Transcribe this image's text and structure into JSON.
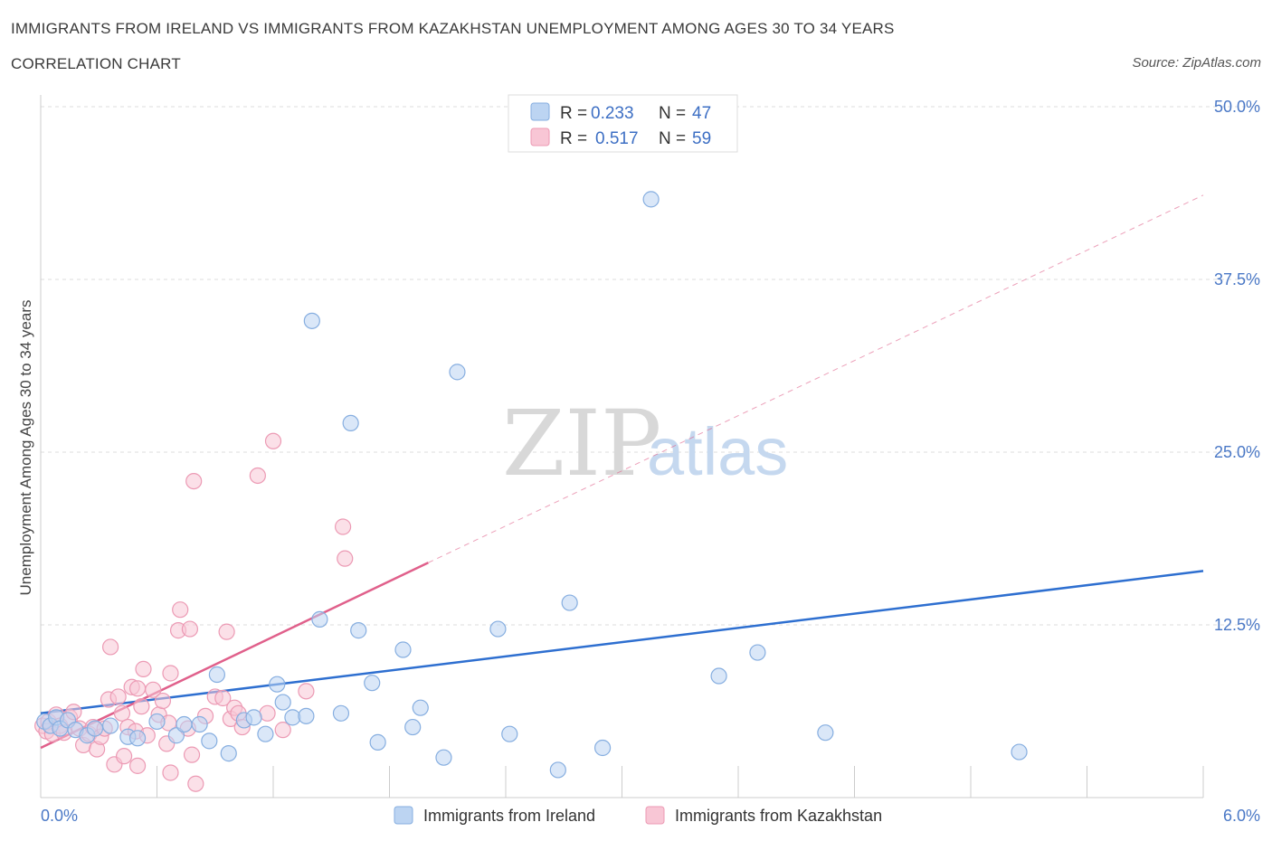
{
  "title": "IMMIGRANTS FROM IRELAND VS IMMIGRANTS FROM KAZAKHSTAN UNEMPLOYMENT AMONG AGES 30 TO 34 YEARS",
  "subtitle": "CORRELATION CHART",
  "source": "Source: ZipAtlas.com",
  "watermark": {
    "zip": "ZIP",
    "atlas": "atlas"
  },
  "legend": {
    "r_label": "R =",
    "n_label": "N =",
    "rows": [
      {
        "r": "0.233",
        "n": "47"
      },
      {
        "r": "0.517",
        "n": "59"
      }
    ]
  },
  "colors": {
    "ireland_fill": "#bcd4f2",
    "ireland_stroke": "#86aee0",
    "ireland_line": "#2e6fd0",
    "kazakhstan_fill": "#f8c6d5",
    "kazakhstan_stroke": "#ec9ab4",
    "kazakhstan_line": "#e0608b",
    "axis_text": "#4a78c6",
    "grid": "#dddddd"
  },
  "chart_data": {
    "type": "scatter",
    "title": "IMMIGRANTS FROM IRELAND VS IMMIGRANTS FROM KAZAKHSTAN UNEMPLOYMENT AMONG AGES 30 TO 34 YEARS",
    "xlabel": "",
    "ylabel": "Unemployment Among Ages 30 to 34 years",
    "xlim": [
      0,
      6.0
    ],
    "ylim": [
      0,
      50
    ],
    "x_tick_labels": [
      "0.0%",
      "6.0%"
    ],
    "y_tick_labels": [
      "12.5%",
      "25.0%",
      "37.5%",
      "50.0%"
    ],
    "y_ticks": [
      12.5,
      25.0,
      37.5,
      50.0
    ],
    "grid": true,
    "series": [
      {
        "name": "Immigrants from Ireland",
        "r": 0.233,
        "n": 47,
        "trend": {
          "x": [
            0,
            6.0
          ],
          "y": [
            6.1,
            16.4
          ],
          "style": "solid"
        },
        "points": [
          [
            0.02,
            5.5
          ],
          [
            0.05,
            5.2
          ],
          [
            0.08,
            5.8
          ],
          [
            0.1,
            5.0
          ],
          [
            0.14,
            5.6
          ],
          [
            0.18,
            4.9
          ],
          [
            0.24,
            4.5
          ],
          [
            0.28,
            5.0
          ],
          [
            0.36,
            5.2
          ],
          [
            0.45,
            4.4
          ],
          [
            0.5,
            4.3
          ],
          [
            0.6,
            5.5
          ],
          [
            0.7,
            4.5
          ],
          [
            0.74,
            5.3
          ],
          [
            0.82,
            5.3
          ],
          [
            0.87,
            4.1
          ],
          [
            0.91,
            8.9
          ],
          [
            0.97,
            3.2
          ],
          [
            1.05,
            5.6
          ],
          [
            1.1,
            5.8
          ],
          [
            1.16,
            4.6
          ],
          [
            1.22,
            8.2
          ],
          [
            1.25,
            6.9
          ],
          [
            1.3,
            5.8
          ],
          [
            1.37,
            5.9
          ],
          [
            1.4,
            34.5
          ],
          [
            1.44,
            12.9
          ],
          [
            1.55,
            6.1
          ],
          [
            1.6,
            27.1
          ],
          [
            1.64,
            12.1
          ],
          [
            1.71,
            8.3
          ],
          [
            1.74,
            4.0
          ],
          [
            1.87,
            10.7
          ],
          [
            1.92,
            5.1
          ],
          [
            1.96,
            6.5
          ],
          [
            2.08,
            2.9
          ],
          [
            2.15,
            30.8
          ],
          [
            2.36,
            12.2
          ],
          [
            2.42,
            4.6
          ],
          [
            2.67,
            2.0
          ],
          [
            2.73,
            14.1
          ],
          [
            2.9,
            3.6
          ],
          [
            3.15,
            43.3
          ],
          [
            3.5,
            8.8
          ],
          [
            3.7,
            10.5
          ],
          [
            4.05,
            4.7
          ],
          [
            5.05,
            3.3
          ]
        ]
      },
      {
        "name": "Immigrants from Kazakhstan",
        "r": 0.517,
        "n": 59,
        "trend": {
          "x": [
            0,
            2.0
          ],
          "y": [
            3.6,
            17.0
          ],
          "style": "solid"
        },
        "trend_extension": {
          "x": [
            2.0,
            6.0
          ],
          "y": [
            17.0,
            43.6
          ],
          "style": "dashed"
        },
        "points": [
          [
            0.01,
            5.2
          ],
          [
            0.03,
            4.8
          ],
          [
            0.04,
            5.5
          ],
          [
            0.06,
            4.6
          ],
          [
            0.08,
            6.0
          ],
          [
            0.1,
            5.2
          ],
          [
            0.12,
            4.7
          ],
          [
            0.15,
            5.8
          ],
          [
            0.17,
            6.2
          ],
          [
            0.2,
            5.0
          ],
          [
            0.22,
            3.8
          ],
          [
            0.25,
            4.6
          ],
          [
            0.27,
            5.1
          ],
          [
            0.29,
            3.5
          ],
          [
            0.31,
            4.4
          ],
          [
            0.33,
            5.0
          ],
          [
            0.35,
            7.1
          ],
          [
            0.36,
            10.9
          ],
          [
            0.38,
            2.4
          ],
          [
            0.4,
            7.3
          ],
          [
            0.42,
            6.1
          ],
          [
            0.43,
            3.0
          ],
          [
            0.45,
            5.1
          ],
          [
            0.47,
            8.0
          ],
          [
            0.49,
            4.8
          ],
          [
            0.5,
            7.9
          ],
          [
            0.5,
            2.3
          ],
          [
            0.52,
            6.6
          ],
          [
            0.53,
            9.3
          ],
          [
            0.55,
            4.5
          ],
          [
            0.58,
            7.8
          ],
          [
            0.61,
            6.0
          ],
          [
            0.63,
            7.0
          ],
          [
            0.65,
            3.9
          ],
          [
            0.66,
            5.4
          ],
          [
            0.67,
            9.0
          ],
          [
            0.67,
            1.8
          ],
          [
            0.71,
            12.1
          ],
          [
            0.72,
            13.6
          ],
          [
            0.76,
            5.0
          ],
          [
            0.77,
            12.2
          ],
          [
            0.78,
            3.1
          ],
          [
            0.79,
            22.9
          ],
          [
            0.8,
            1.0
          ],
          [
            0.85,
            5.9
          ],
          [
            0.9,
            7.3
          ],
          [
            0.94,
            7.2
          ],
          [
            0.96,
            12.0
          ],
          [
            0.98,
            5.7
          ],
          [
            1.0,
            6.5
          ],
          [
            1.02,
            6.1
          ],
          [
            1.04,
            5.1
          ],
          [
            1.12,
            23.3
          ],
          [
            1.17,
            6.1
          ],
          [
            1.2,
            25.8
          ],
          [
            1.25,
            4.9
          ],
          [
            1.37,
            7.7
          ],
          [
            1.56,
            19.6
          ],
          [
            1.57,
            17.3
          ]
        ]
      }
    ]
  },
  "bottom_legend": [
    "Immigrants from Ireland",
    "Immigrants from Kazakhstan"
  ]
}
